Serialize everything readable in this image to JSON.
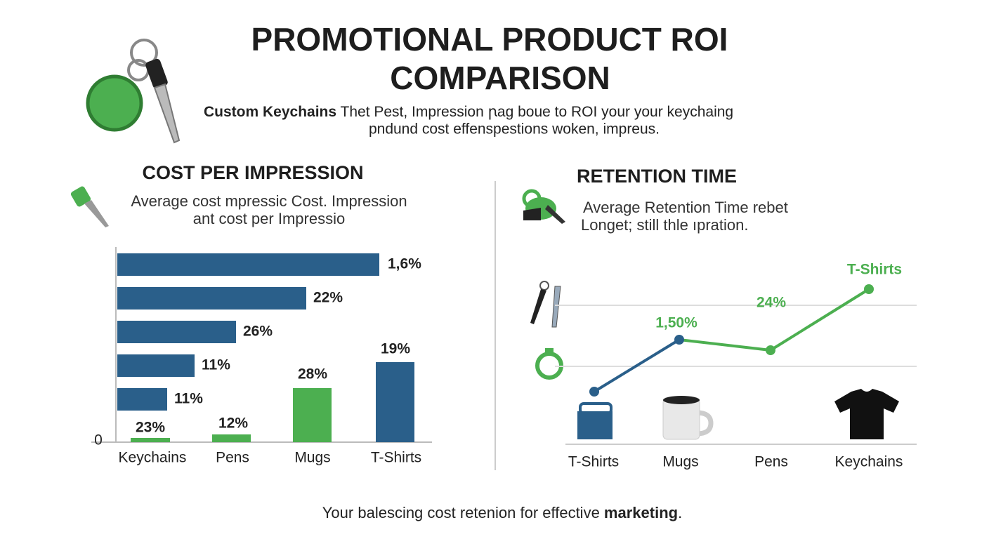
{
  "header": {
    "title_line1": "PROMOTIONAL PRODUCT ROI",
    "title_line2": "COMPARISON",
    "subtitle_bold": "Custom Keychains",
    "subtitle_line1": " Thet Pest, Impression ꞃag boue to ROI your your keychaing",
    "subtitle_line2": "pndund cost effenspestions woken, impreus."
  },
  "cost_panel": {
    "title": "COST PER IMPRESSION",
    "description_line1": "Average cost mpressic Cost. Impression",
    "description_line2": "ant cost per Impressio",
    "axis_zero": "0",
    "bar_labels": [
      "1,6%",
      "22%",
      "26%",
      "11%",
      "11%"
    ],
    "column_labels": [
      "23%",
      "12%",
      "28%",
      "19%"
    ],
    "categories": [
      "Keychains",
      "Pens",
      "Mugs",
      "T-Shirts"
    ]
  },
  "retention_panel": {
    "title": "RETENTION TIME",
    "description_line1": "Average Retention Time rebet",
    "description_line2": "Longet; still thle ıpration.",
    "point_labels": [
      "1,50%",
      "24%",
      "T-Shirts"
    ],
    "categories": [
      "T-Shirts",
      "Mugs",
      "Pens",
      "Keychains"
    ]
  },
  "footer": {
    "text": "Your balescing cost retenion for effective ",
    "bold": "marketing",
    "end": "."
  }
}
